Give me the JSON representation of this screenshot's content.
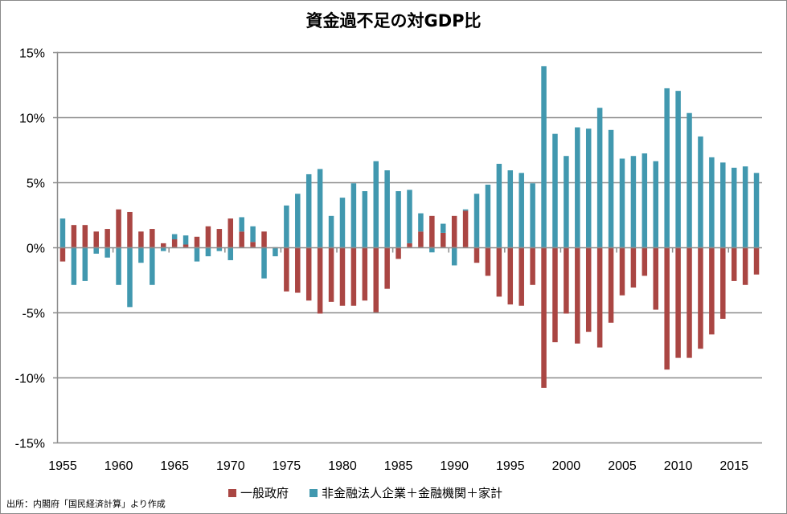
{
  "chart_data": {
    "type": "bar",
    "stacked": true,
    "title": "資金過不足の対GDP比",
    "xlabel": "",
    "ylabel": "",
    "ylim": [
      -15,
      15
    ],
    "y_ticks": [
      15,
      10,
      5,
      0,
      -5,
      -10,
      -15
    ],
    "y_tick_labels": [
      "15%",
      "10%",
      "5%",
      "0%",
      "-5%",
      "-10%",
      "-15%"
    ],
    "x_tick_labels": [
      "1955",
      "1960",
      "1965",
      "1970",
      "1975",
      "1980",
      "1985",
      "1990",
      "1995",
      "2000",
      "2005",
      "2010",
      "2015"
    ],
    "grid": true,
    "legend_position": "bottom",
    "categories": [
      1955,
      1956,
      1957,
      1958,
      1959,
      1960,
      1961,
      1962,
      1963,
      1964,
      1965,
      1966,
      1967,
      1968,
      1969,
      1970,
      1971,
      1972,
      1973,
      1974,
      1975,
      1976,
      1977,
      1978,
      1979,
      1980,
      1981,
      1982,
      1983,
      1984,
      1985,
      1986,
      1987,
      1988,
      1989,
      1990,
      1991,
      1992,
      1993,
      1994,
      1995,
      1996,
      1997,
      1998,
      1999,
      2000,
      2001,
      2002,
      2003,
      2004,
      2005,
      2006,
      2007,
      2008,
      2009,
      2010,
      2011,
      2012,
      2013,
      2014,
      2015,
      2016,
      2017
    ],
    "series": [
      {
        "name": "一般政府",
        "color": "#AA4643",
        "values": [
          -1.1,
          1.7,
          1.7,
          1.2,
          1.4,
          2.9,
          2.7,
          1.2,
          1.4,
          0.3,
          0.6,
          0.2,
          0.8,
          1.6,
          1.4,
          2.2,
          1.2,
          0.4,
          1.2,
          0.0,
          -3.4,
          -3.5,
          -4.1,
          -5.1,
          -4.2,
          -4.5,
          -4.5,
          -4.1,
          -5.0,
          -3.2,
          -0.9,
          0.3,
          1.2,
          2.4,
          1.1,
          2.4,
          2.8,
          -1.2,
          -2.2,
          -3.8,
          -4.4,
          -4.5,
          -2.9,
          -10.8,
          -7.3,
          -5.1,
          -7.4,
          -6.5,
          -7.7,
          -5.8,
          -3.7,
          -3.1,
          -2.2,
          -4.8,
          -9.4,
          -8.5,
          -8.5,
          -7.8,
          -6.7,
          -5.5,
          -2.6,
          -2.9,
          -2.1
        ]
      },
      {
        "name": "非金融法人企業＋金融機関＋家計",
        "color": "#4198AF",
        "values": [
          2.2,
          -2.9,
          -2.6,
          -0.5,
          -0.8,
          -2.9,
          -4.6,
          -1.2,
          -2.9,
          -0.3,
          0.4,
          0.7,
          -1.1,
          -0.7,
          -0.3,
          -1.0,
          1.1,
          1.2,
          -2.4,
          -0.7,
          3.2,
          4.1,
          5.6,
          6.0,
          2.4,
          3.8,
          4.9,
          4.3,
          6.6,
          5.9,
          4.3,
          4.1,
          1.4,
          -0.4,
          0.7,
          -1.4,
          0.1,
          4.1,
          4.8,
          6.4,
          5.9,
          5.7,
          4.9,
          13.9,
          8.7,
          7.0,
          9.2,
          9.1,
          10.7,
          9.0,
          6.8,
          7.0,
          7.2,
          6.6,
          12.2,
          12.0,
          10.3,
          8.5,
          6.9,
          6.5,
          6.1,
          6.2,
          5.7
        ]
      }
    ]
  },
  "legend": {
    "items": [
      {
        "label": "一般政府",
        "color": "#AA4643"
      },
      {
        "label": "非金融法人企業＋金融機関＋家計",
        "color": "#4198AF"
      }
    ]
  },
  "source_note": "出所：内閣府「国民経済計算」より作成"
}
